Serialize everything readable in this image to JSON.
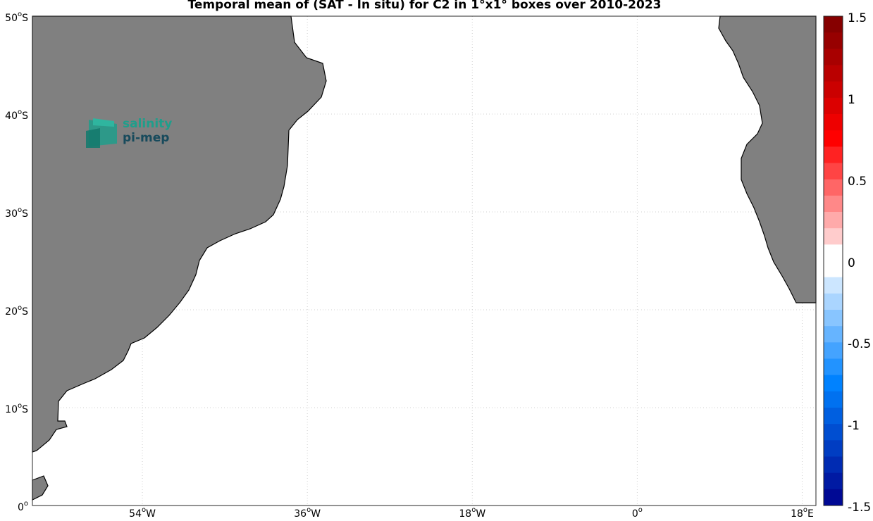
{
  "title": "Temporal mean of (SAT - In situ) for C2 in 1°x1° boxes over 2010-2023",
  "logo": {
    "line1": "salinity",
    "line2": "pi-mep"
  },
  "chart_data": {
    "type": "heatmap",
    "title": "Temporal mean of (SAT - In situ) for C2 in 1°x1° boxes over 2010-2023",
    "x_axis": {
      "range_deg": [
        -66,
        19.5
      ],
      "ticks": [
        -54,
        -36,
        -18,
        0,
        18
      ],
      "tick_labels": [
        "54°W",
        "36°W",
        "18°W",
        "0°",
        "18°E"
      ]
    },
    "y_axis": {
      "range_deg": [
        -50,
        0
      ],
      "ticks": [
        0,
        -10,
        -20,
        -30,
        -40,
        -50
      ],
      "tick_labels": [
        "0°",
        "10°S",
        "20°S",
        "30°S",
        "40°S",
        "50°S"
      ]
    },
    "grid": true,
    "colorbar": {
      "range": [
        -1.5,
        1.5
      ],
      "levels": 30,
      "ticks": [
        1.5,
        1,
        0.5,
        0,
        -0.5,
        -1,
        -1.5
      ],
      "tick_labels": [
        "1.5",
        "1",
        "0.5",
        "0",
        "-0.5",
        "-1",
        "-1.5"
      ],
      "colormap": "blue-white-red"
    },
    "cells_lon_lat_value": [
      [
        -38,
        -1,
        0.1
      ],
      [
        -37,
        -1,
        0.1
      ],
      [
        -28,
        -1,
        0.2
      ],
      [
        -27,
        0,
        -0.1
      ],
      [
        -26,
        0,
        -0.2
      ],
      [
        -38,
        -4,
        0.1
      ],
      [
        -37,
        -4,
        0.2
      ],
      [
        -35,
        -4,
        0.2
      ],
      [
        -35,
        -5,
        0.1
      ],
      [
        -35,
        -6,
        -0.2
      ],
      [
        -35,
        -7,
        -0.1
      ],
      [
        -33,
        -7,
        -0.1
      ],
      [
        -33,
        -9,
        0.1
      ],
      [
        -35,
        -8,
        -0.3
      ],
      [
        -36,
        -9,
        -0.2
      ],
      [
        -37,
        -10,
        -0.2
      ],
      [
        -38,
        -11,
        -0.1
      ],
      [
        -34,
        -12,
        -0.1
      ],
      [
        -34,
        -13,
        -0.2
      ],
      [
        -35,
        -13,
        -0.1
      ],
      [
        -35,
        -14,
        -0.2
      ],
      [
        -35,
        -15,
        -0.2
      ],
      [
        -36,
        -15,
        -0.1
      ],
      [
        -36,
        -16,
        0.1
      ],
      [
        -36,
        -17,
        -0.1
      ],
      [
        -37,
        -16,
        0.1
      ],
      [
        -38,
        -18,
        -0.1
      ],
      [
        -37,
        -18,
        -0.6
      ],
      [
        -39,
        -19,
        -0.1
      ],
      [
        -38,
        -20,
        -0.1
      ],
      [
        -37,
        -20,
        -0.1
      ],
      [
        -39,
        -20,
        -0.1
      ],
      [
        -38,
        -21,
        -0.2
      ],
      [
        -37,
        -21,
        -0.1
      ],
      [
        -39,
        -21,
        -0.3
      ],
      [
        -38,
        -22,
        -0.1
      ],
      [
        -40,
        -22,
        0.2
      ],
      [
        -41,
        -22,
        0.6
      ],
      [
        -40,
        -23,
        0.3
      ],
      [
        -39,
        -23,
        -0.1
      ],
      [
        -41,
        -23,
        0.3
      ],
      [
        -42,
        -23,
        0.5
      ],
      [
        -43,
        -23,
        0.7
      ],
      [
        -44,
        -24,
        0.7
      ],
      [
        -45,
        -24,
        0.8
      ],
      [
        -46,
        -24,
        0.9
      ],
      [
        -47,
        -25,
        1.0
      ],
      [
        -48,
        -25,
        0.9
      ],
      [
        -49,
        -26,
        0.8
      ],
      [
        -41,
        -24,
        -0.1
      ],
      [
        -40,
        -24,
        -0.1
      ],
      [
        -43,
        -24,
        0.1
      ],
      [
        -42,
        -25,
        -0.1
      ],
      [
        -44,
        -26,
        0.1
      ],
      [
        -45,
        -27,
        -0.1
      ],
      [
        -44,
        -28,
        -0.3
      ],
      [
        -43,
        -28,
        -0.1
      ],
      [
        -44,
        -29,
        -0.1
      ],
      [
        -50,
        -26,
        0.9
      ],
      [
        -49,
        -27,
        1.3
      ],
      [
        -50,
        -27,
        1.1
      ],
      [
        -48,
        -28,
        1.1
      ],
      [
        -49,
        -28,
        1.2
      ],
      [
        -49,
        -29,
        1.1
      ],
      [
        -50,
        -29,
        0.9
      ],
      [
        -50,
        -30,
        1.1
      ],
      [
        -51,
        -30,
        1.0
      ],
      [
        -52,
        -31,
        -0.6
      ],
      [
        -51,
        -31,
        0.3
      ],
      [
        -53,
        -32,
        -0.8
      ],
      [
        -52,
        -32,
        -1.3
      ],
      [
        -53,
        -33,
        -0.2
      ],
      [
        -52,
        -33,
        0.1
      ],
      [
        -55,
        -34,
        1.4
      ],
      [
        -54,
        -34,
        1.3
      ],
      [
        -53,
        -34,
        1.2
      ],
      [
        -54,
        -35,
        1.3
      ],
      [
        -56,
        -35,
        1.3
      ],
      [
        -55,
        -36,
        -0.1
      ],
      [
        -55,
        -37,
        -0.2
      ],
      [
        -54,
        -38,
        -0.1
      ],
      [
        -53,
        -42,
        1.4
      ],
      [
        -56,
        -41,
        0.1
      ],
      [
        -57,
        -42,
        0.3
      ],
      [
        -56,
        -42,
        0.1
      ],
      [
        -57,
        -43,
        0.2
      ],
      [
        -59,
        -44,
        -0.6
      ],
      [
        -58,
        -44,
        -0.1
      ],
      [
        -60,
        -45,
        -0.2
      ],
      [
        -59,
        -45,
        -0.1
      ],
      [
        -60,
        -46,
        -0.2
      ],
      [
        -49,
        -44,
        -0.2
      ],
      [
        -49,
        -45,
        -0.2
      ],
      [
        -48,
        -46,
        -0.2
      ],
      [
        -47,
        -46,
        -0.6
      ],
      [
        -46,
        -48,
        0.2
      ],
      [
        -45,
        -49,
        0.8
      ],
      [
        -44,
        -49,
        0.9
      ],
      [
        -43,
        -49,
        0.3
      ],
      [
        -63,
        -48,
        0.1
      ],
      [
        -62,
        -48,
        0.2
      ],
      [
        -61,
        -48,
        0.2
      ],
      [
        -62,
        -49,
        0.2
      ],
      [
        -63,
        -49,
        -0.1
      ],
      [
        -8,
        0,
        -0.1
      ],
      [
        -6,
        -1,
        0.1
      ],
      [
        -1,
        0,
        0.2
      ],
      [
        0,
        0,
        -0.1
      ],
      [
        1,
        -1,
        -0.2
      ],
      [
        3,
        -1,
        -0.1
      ],
      [
        4,
        -1,
        -0.2
      ],
      [
        5,
        -2,
        -0.2
      ],
      [
        6,
        -2,
        -0.2
      ],
      [
        7,
        -2,
        -0.3
      ],
      [
        8,
        -2,
        0.2
      ],
      [
        9,
        -2,
        0.3
      ],
      [
        8,
        0,
        0.8
      ],
      [
        5,
        -3,
        -0.2
      ],
      [
        6,
        -3,
        -0.3
      ],
      [
        7,
        -3,
        -0.1
      ],
      [
        -4,
        -3,
        -0.1
      ],
      [
        -4,
        -4,
        -0.1
      ],
      [
        8,
        -4,
        -0.3
      ],
      [
        9,
        -4,
        0.6
      ],
      [
        10,
        -4,
        0.3
      ],
      [
        11,
        -4,
        0.8
      ],
      [
        7,
        -5,
        0.9
      ],
      [
        8,
        -5,
        0.8
      ],
      [
        9,
        -5,
        1.3
      ],
      [
        10,
        -5,
        1.4
      ],
      [
        11,
        -5,
        1.4
      ],
      [
        12,
        -5,
        1.2
      ],
      [
        7,
        -6,
        -0.4
      ],
      [
        8,
        -6,
        -0.6
      ],
      [
        9,
        -6,
        0.9
      ],
      [
        10,
        -6,
        0.9
      ],
      [
        11,
        -6,
        0.7
      ],
      [
        12,
        -6,
        0.4
      ],
      [
        13,
        -6,
        0.3
      ],
      [
        9,
        -7,
        0.8
      ],
      [
        10,
        -7,
        -0.2
      ],
      [
        11,
        -7,
        0.2
      ],
      [
        12,
        -7,
        -0.5
      ],
      [
        8,
        -7,
        -0.3
      ],
      [
        8,
        -8,
        -0.1
      ],
      [
        12,
        -8,
        -0.3
      ],
      [
        13,
        -8,
        -0.6
      ],
      [
        8,
        -9,
        -0.3
      ],
      [
        10,
        -9,
        -0.3
      ],
      [
        11,
        -9,
        0.2
      ],
      [
        -2,
        -7,
        -0.1
      ],
      [
        -1,
        -8,
        -0.1
      ],
      [
        -1,
        -9,
        -0.3
      ],
      [
        9,
        -10,
        -0.1
      ],
      [
        10,
        -10,
        0.1
      ],
      [
        11,
        -10,
        0.2
      ],
      [
        9,
        -11,
        -0.1
      ],
      [
        11,
        -11,
        0.3
      ],
      [
        9,
        -12,
        -0.2
      ],
      [
        10,
        -12,
        -0.2
      ],
      [
        11,
        -12,
        0.1
      ],
      [
        0,
        -12,
        0.8
      ],
      [
        10,
        -13,
        -0.1
      ],
      [
        10,
        -14,
        -0.3
      ],
      [
        11,
        -14,
        -0.3
      ],
      [
        11,
        -15,
        -0.2
      ],
      [
        11,
        -16,
        -0.2
      ],
      [
        3,
        -15,
        0.6
      ],
      [
        4,
        -15,
        0.2
      ],
      [
        4,
        -16,
        0.1
      ],
      [
        5,
        -17,
        0.3
      ],
      [
        12,
        -19,
        -0.1
      ],
      [
        13,
        -19,
        -0.1
      ],
      [
        13,
        -20,
        -0.2
      ],
      [
        13,
        -21,
        -0.3
      ],
      [
        14,
        -22,
        -0.2
      ],
      [
        15,
        -24,
        -0.7
      ],
      [
        15,
        -25,
        -0.3
      ],
      [
        16,
        -26,
        -0.2
      ],
      [
        16,
        -27,
        -0.2
      ],
      [
        16,
        -28,
        -0.2
      ],
      [
        17,
        -29,
        0.3
      ],
      [
        16,
        -29,
        0.2
      ],
      [
        17,
        -30,
        0.2
      ],
      [
        18,
        -30,
        -0.1
      ],
      [
        18,
        -31,
        0.2
      ],
      [
        6,
        -21,
        0.7
      ],
      [
        7,
        -21,
        -0.1
      ],
      [
        9,
        -25,
        0.2
      ],
      [
        10,
        -26,
        0.2
      ],
      [
        11,
        -27,
        0.1
      ]
    ]
  }
}
